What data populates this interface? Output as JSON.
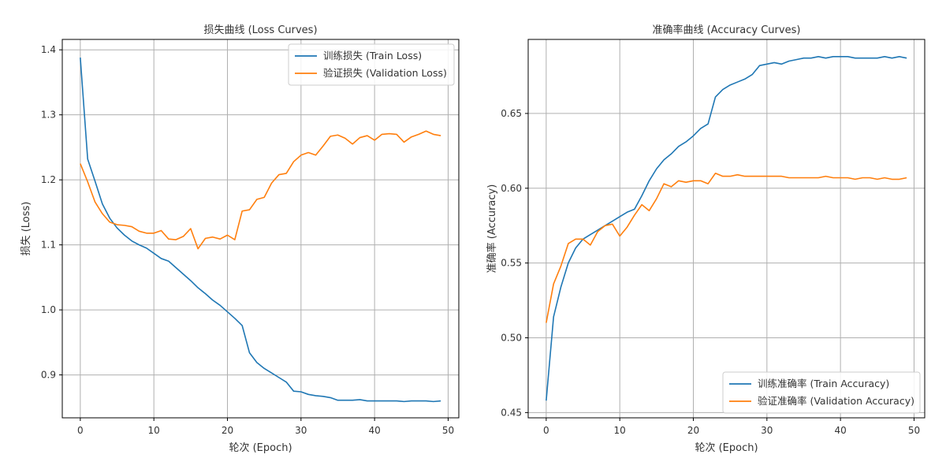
{
  "colors": {
    "train": "#1f77b4",
    "validation": "#ff7f0e",
    "grid": "#b0b0b0",
    "axis": "#000000"
  },
  "chart_data": [
    {
      "type": "line",
      "title": "损失曲线 (Loss Curves)",
      "xlabel": "轮次 (Epoch)",
      "ylabel": "损失 (Loss)",
      "xlim": [
        -2.45,
        51.45
      ],
      "ylim": [
        0.834,
        1.416
      ],
      "xticks": [
        0,
        10,
        20,
        30,
        40,
        50
      ],
      "yticks": [
        0.9,
        1.0,
        1.1,
        1.2,
        1.3,
        1.4
      ],
      "ytick_labels": [
        "0.9",
        "1.0",
        "1.1",
        "1.2",
        "1.3",
        "1.4"
      ],
      "grid": true,
      "legend_position": "upper-right",
      "x": [
        0,
        1,
        2,
        3,
        4,
        5,
        6,
        7,
        8,
        9,
        10,
        11,
        12,
        13,
        14,
        15,
        16,
        17,
        18,
        19,
        20,
        21,
        22,
        23,
        24,
        25,
        26,
        27,
        28,
        29,
        30,
        31,
        32,
        33,
        34,
        35,
        36,
        37,
        38,
        39,
        40,
        41,
        42,
        43,
        44,
        45,
        46,
        47,
        48,
        49
      ],
      "series": [
        {
          "name": "训练损失 (Train Loss)",
          "color": "#1f77b4",
          "values": [
            1.388,
            1.232,
            1.198,
            1.163,
            1.141,
            1.126,
            1.115,
            1.106,
            1.1,
            1.095,
            1.087,
            1.079,
            1.075,
            1.065,
            1.055,
            1.045,
            1.034,
            1.025,
            1.015,
            1.007,
            0.997,
            0.987,
            0.976,
            0.934,
            0.919,
            0.91,
            0.903,
            0.896,
            0.889,
            0.875,
            0.874,
            0.87,
            0.868,
            0.867,
            0.865,
            0.861,
            0.861,
            0.861,
            0.862,
            0.86,
            0.86,
            0.86,
            0.86,
            0.86,
            0.859,
            0.86,
            0.86,
            0.86,
            0.859,
            0.86
          ]
        },
        {
          "name": "验证损失 (Validation Loss)",
          "color": "#ff7f0e",
          "values": [
            1.225,
            1.197,
            1.166,
            1.148,
            1.135,
            1.131,
            1.13,
            1.128,
            1.121,
            1.118,
            1.118,
            1.122,
            1.109,
            1.108,
            1.113,
            1.125,
            1.094,
            1.11,
            1.112,
            1.109,
            1.115,
            1.108,
            1.152,
            1.154,
            1.17,
            1.173,
            1.195,
            1.208,
            1.21,
            1.228,
            1.238,
            1.242,
            1.238,
            1.252,
            1.267,
            1.269,
            1.264,
            1.255,
            1.265,
            1.268,
            1.261,
            1.27,
            1.271,
            1.27,
            1.258,
            1.266,
            1.27,
            1.275,
            1.27,
            1.268
          ]
        }
      ]
    },
    {
      "type": "line",
      "title": "准确率曲线 (Accuracy Curves)",
      "xlabel": "轮次 (Epoch)",
      "ylabel": "准确率 (Accuracy)",
      "xlim": [
        -2.45,
        51.45
      ],
      "ylim": [
        0.4465,
        0.6995
      ],
      "xticks": [
        0,
        10,
        20,
        30,
        40,
        50
      ],
      "yticks": [
        0.45,
        0.5,
        0.55,
        0.6,
        0.65
      ],
      "ytick_labels": [
        "0.45",
        "0.50",
        "0.55",
        "0.60",
        "0.65"
      ],
      "grid": true,
      "legend_position": "lower-right",
      "x": [
        0,
        1,
        2,
        3,
        4,
        5,
        6,
        7,
        8,
        9,
        10,
        11,
        12,
        13,
        14,
        15,
        16,
        17,
        18,
        19,
        20,
        21,
        22,
        23,
        24,
        25,
        26,
        27,
        28,
        29,
        30,
        31,
        32,
        33,
        34,
        35,
        36,
        37,
        38,
        39,
        40,
        41,
        42,
        43,
        44,
        45,
        46,
        47,
        48,
        49
      ],
      "series": [
        {
          "name": "训练准确率 (Train Accuracy)",
          "color": "#1f77b4",
          "values": [
            0.458,
            0.514,
            0.534,
            0.55,
            0.56,
            0.566,
            0.569,
            0.572,
            0.575,
            0.578,
            0.581,
            0.584,
            0.586,
            0.595,
            0.605,
            0.613,
            0.619,
            0.623,
            0.628,
            0.631,
            0.635,
            0.64,
            0.643,
            0.661,
            0.666,
            0.669,
            0.671,
            0.673,
            0.676,
            0.682,
            0.683,
            0.684,
            0.683,
            0.685,
            0.686,
            0.687,
            0.687,
            0.688,
            0.687,
            0.688,
            0.688,
            0.688,
            0.687,
            0.687,
            0.687,
            0.687,
            0.688,
            0.687,
            0.688,
            0.687
          ]
        },
        {
          "name": "验证准确率 (Validation Accuracy)",
          "color": "#ff7f0e",
          "values": [
            0.51,
            0.536,
            0.548,
            0.563,
            0.566,
            0.566,
            0.562,
            0.571,
            0.575,
            0.576,
            0.568,
            0.574,
            0.582,
            0.589,
            0.585,
            0.593,
            0.603,
            0.601,
            0.605,
            0.604,
            0.605,
            0.605,
            0.603,
            0.61,
            0.608,
            0.608,
            0.609,
            0.608,
            0.608,
            0.608,
            0.608,
            0.608,
            0.608,
            0.607,
            0.607,
            0.607,
            0.607,
            0.607,
            0.608,
            0.607,
            0.607,
            0.607,
            0.606,
            0.607,
            0.607,
            0.606,
            0.607,
            0.606,
            0.606,
            0.607
          ]
        }
      ]
    }
  ]
}
